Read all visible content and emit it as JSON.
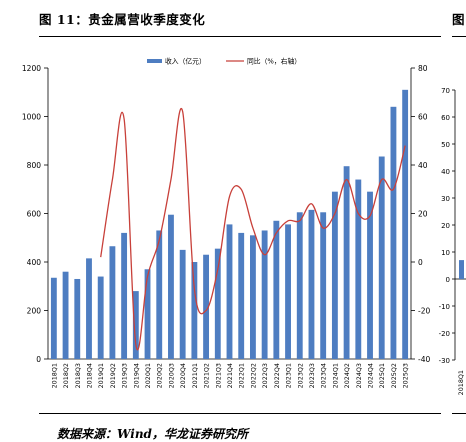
{
  "figure": {
    "title": "图 11：贵金属营收季度变化",
    "next_title_fragment": "图",
    "source": "数据来源：Wind，华龙证券研究所"
  },
  "colors": {
    "bar": "#4e7dc1",
    "line": "#c8403a",
    "axis": "#000000"
  },
  "chart_data": {
    "type": "bar",
    "title": "",
    "categories": [
      "2018Q1",
      "2018Q2",
      "2018Q3",
      "2018Q4",
      "2019Q1",
      "2019Q2",
      "2019Q3",
      "2019Q4",
      "2020Q1",
      "2020Q2",
      "2020Q3",
      "2020Q4",
      "2021Q1",
      "2021Q2",
      "2021Q3",
      "2021Q4",
      "2022Q1",
      "2022Q2",
      "2022Q3",
      "2022Q4",
      "2023Q1",
      "2023Q2",
      "2023Q3",
      "2023Q4",
      "2024Q1",
      "2024Q2",
      "2024Q3",
      "2024Q4",
      "2025Q1",
      "2025Q2",
      "2025Q3"
    ],
    "series": [
      {
        "name": "收入（亿元）",
        "axis": "left",
        "type": "bar",
        "values": [
          335,
          360,
          330,
          415,
          340,
          465,
          520,
          280,
          370,
          530,
          595,
          450,
          400,
          430,
          455,
          555,
          520,
          510,
          530,
          570,
          555,
          605,
          615,
          605,
          690,
          795,
          740,
          690,
          835,
          1040,
          1110
        ]
      },
      {
        "name": "同比（%，右轴）",
        "axis": "right",
        "type": "line",
        "values": [
          null,
          null,
          null,
          null,
          2,
          34,
          59,
          -34,
          -6,
          9,
          34,
          62,
          -11,
          -20,
          -3,
          27,
          30,
          14,
          3,
          12,
          17,
          17,
          24,
          14,
          20,
          34,
          20,
          19,
          34,
          30,
          48
        ]
      }
    ],
    "ylim": [
      0,
      1200
    ],
    "yticks": [
      0,
      200,
      400,
      600,
      800,
      1000,
      1200
    ],
    "y2lim": [
      -40,
      80
    ],
    "y2ticks": [
      -40,
      -20,
      0,
      20,
      40,
      60,
      80
    ],
    "legend_position": "top-center",
    "grid": false
  },
  "partial_chart": {
    "yticks": [
      -30,
      -20,
      -10,
      0,
      10,
      20,
      30,
      40,
      50,
      60,
      70
    ],
    "first_category": "2018Q1"
  }
}
